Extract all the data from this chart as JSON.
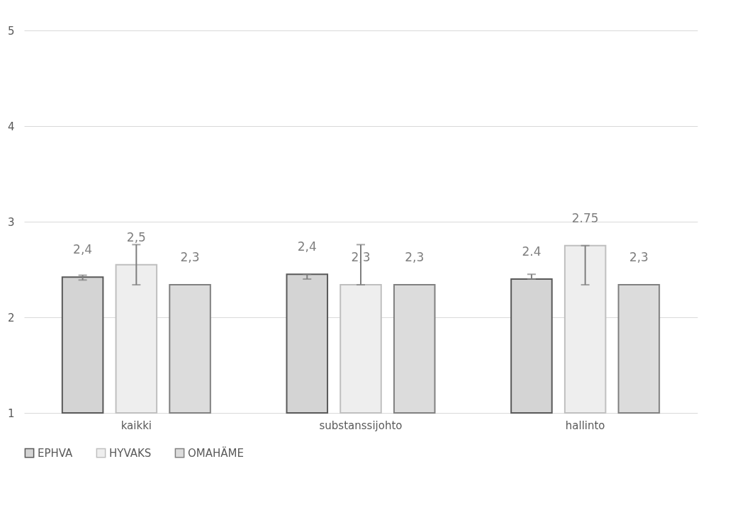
{
  "chart_data": {
    "type": "bar",
    "categories": [
      "kaikki",
      "substanssijohto",
      "hallinto"
    ],
    "series": [
      {
        "name": "EPHVA",
        "color": "#d4d4d4",
        "values": [
          2.42,
          2.45,
          2.4
        ],
        "errors": [
          [
            2.39,
            2.44
          ],
          [
            2.4,
            2.45
          ],
          [
            2.4,
            2.45
          ]
        ],
        "value_labels": [
          "2,4",
          "2,4",
          "2.4"
        ]
      },
      {
        "name": "HYVAKS",
        "color": "#eeeeee",
        "values": [
          2.55,
          2.34,
          2.75
        ],
        "errors": [
          [
            2.34,
            2.76
          ],
          [
            2.34,
            2.76
          ],
          [
            2.34,
            2.75
          ]
        ],
        "value_labels": [
          "2,5",
          "2,3",
          "2.75"
        ]
      },
      {
        "name": "OMAHÄME",
        "color": "#dcdcdc",
        "values": [
          2.34,
          2.34,
          2.34
        ],
        "errors": [
          null,
          null,
          null
        ],
        "value_labels": [
          "2,3",
          "2,3",
          "2,3"
        ]
      }
    ],
    "ylim": [
      1,
      5
    ],
    "yticks": [
      1,
      2,
      3,
      4,
      5
    ],
    "grid": "y",
    "legend": "bottom"
  }
}
